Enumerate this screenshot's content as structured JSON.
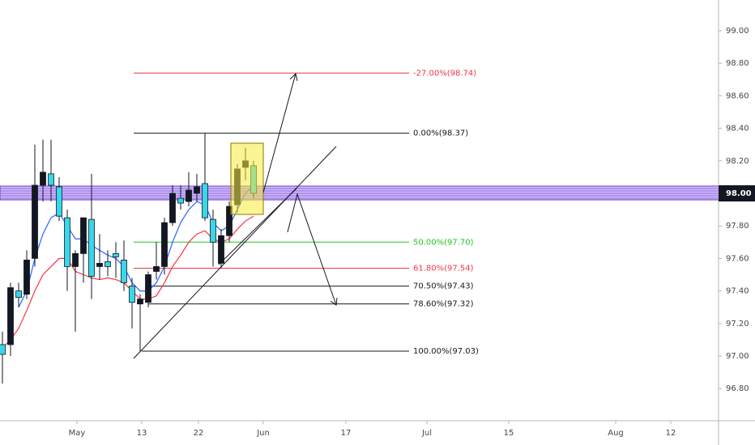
{
  "chart_data": {
    "type": "candlestick",
    "up_color": "#131722",
    "down_color": "#3ad6ea",
    "x": [
      0,
      1,
      2,
      3,
      4,
      5,
      6,
      7,
      8,
      9,
      10,
      11,
      12,
      13,
      14,
      15,
      16,
      17,
      18,
      19,
      20,
      21,
      22,
      23,
      24,
      25,
      26,
      27,
      28,
      29,
      30,
      31
    ],
    "open": [
      97.07,
      97.07,
      97.4,
      97.38,
      97.6,
      98.05,
      98.12,
      98.04,
      97.85,
      97.55,
      97.63,
      97.84,
      97.55,
      97.58,
      97.63,
      97.59,
      97.43,
      97.32,
      97.33,
      97.52,
      97.55,
      97.82,
      97.97,
      97.95,
      98.0,
      98.06,
      97.84,
      97.57,
      97.74,
      97.93,
      98.16,
      98.17
    ],
    "high": [
      97.15,
      97.45,
      97.45,
      97.65,
      98.3,
      98.33,
      98.33,
      98.1,
      97.9,
      97.65,
      97.85,
      98.12,
      97.75,
      97.65,
      97.7,
      97.71,
      97.48,
      97.38,
      97.52,
      97.7,
      97.85,
      98.05,
      98.05,
      98.13,
      98.12,
      98.37,
      97.9,
      97.78,
      97.95,
      98.18,
      98.28,
      98.2
    ],
    "low": [
      96.83,
      97.0,
      97.3,
      97.35,
      97.55,
      97.95,
      97.95,
      97.83,
      97.4,
      97.15,
      97.45,
      97.35,
      97.47,
      97.49,
      97.48,
      97.4,
      97.17,
      97.03,
      97.3,
      97.47,
      97.5,
      97.8,
      97.9,
      97.92,
      97.95,
      97.83,
      97.55,
      97.54,
      97.7,
      97.88,
      98.08,
      97.97
    ],
    "close": [
      97.01,
      97.42,
      97.36,
      97.59,
      98.05,
      98.13,
      98.05,
      97.86,
      97.55,
      97.63,
      97.85,
      97.49,
      97.57,
      97.55,
      97.61,
      97.45,
      97.33,
      97.35,
      97.5,
      97.55,
      97.82,
      98.0,
      97.94,
      98.02,
      98.04,
      97.85,
      97.7,
      97.74,
      97.92,
      98.15,
      98.2,
      98.0
    ],
    "lines": [
      {
        "color": "#2962ff",
        "values": [
          null,
          null,
          97.3,
          97.4,
          97.6,
          97.75,
          97.85,
          97.88,
          97.8,
          97.72,
          97.72,
          97.68,
          97.65,
          97.62,
          97.6,
          97.55,
          97.45,
          97.4,
          97.4,
          97.45,
          97.55,
          97.7,
          97.82,
          97.9,
          97.95,
          97.93,
          97.82,
          97.77,
          97.8,
          97.9,
          98.0,
          98.05
        ]
      },
      {
        "color": "#f23645",
        "values": [
          97.05,
          97.1,
          97.17,
          97.28,
          97.4,
          97.5,
          97.55,
          97.6,
          97.6,
          97.52,
          97.5,
          97.48,
          97.47,
          97.48,
          97.47,
          97.45,
          97.4,
          97.35,
          97.35,
          97.37,
          97.45,
          97.55,
          97.62,
          97.7,
          97.75,
          97.77,
          97.72,
          97.7,
          97.72,
          97.78,
          97.83,
          97.86
        ]
      }
    ],
    "fib_levels": [
      {
        "value": 98.74,
        "label": "-27.00%(98.74)",
        "color": "#f23645"
      },
      {
        "value": 98.37,
        "label": "0.00%(98.37)",
        "color": "#131722"
      },
      {
        "value": 97.7,
        "label": "50.00%(97.70)",
        "color": "#22c522"
      },
      {
        "value": 97.54,
        "label": "61.80%(97.54)",
        "color": "#f23645"
      },
      {
        "value": 97.43,
        "label": "70.50%(97.43)",
        "color": "#131722"
      },
      {
        "value": 97.32,
        "label": "78.60%(97.32)",
        "color": "#131722"
      },
      {
        "value": 97.03,
        "label": "100.00%(97.03)",
        "color": "#131722"
      }
    ],
    "price_line": {
      "value": 98.0,
      "label": "98.00"
    },
    "xlim": [
      -0.3,
      88.4
    ],
    "ylim": [
      96.602,
      99.189
    ],
    "xticks": [
      {
        "value": 9.2,
        "label": "May"
      },
      {
        "value": 17.2,
        "label": "13"
      },
      {
        "value": 24.2,
        "label": "22"
      },
      {
        "value": 32.2,
        "label": "Jun"
      },
      {
        "value": 42.4,
        "label": "17"
      },
      {
        "value": 52.4,
        "label": "Jul"
      },
      {
        "value": 62.5,
        "label": "15"
      },
      {
        "value": 75.7,
        "label": "Aug"
      },
      {
        "value": 82.5,
        "label": "12"
      }
    ],
    "yticks": [
      {
        "value": 96.8,
        "label": "96.80"
      },
      {
        "value": 97.0,
        "label": "97.00"
      },
      {
        "value": 97.2,
        "label": "97.20"
      },
      {
        "value": 97.4,
        "label": "97.40"
      },
      {
        "value": 97.6,
        "label": "97.60"
      },
      {
        "value": 97.8,
        "label": "97.80"
      },
      {
        "value": 98.2,
        "label": "98.20"
      },
      {
        "value": 98.4,
        "label": "98.40"
      },
      {
        "value": 98.6,
        "label": "98.60"
      },
      {
        "value": 98.8,
        "label": "98.80"
      },
      {
        "value": 99.0,
        "label": "99.00"
      }
    ]
  }
}
